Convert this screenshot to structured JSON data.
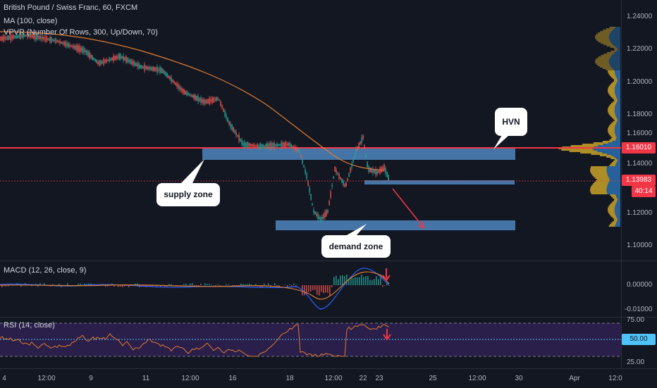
{
  "legend": {
    "symbol": "British Pound / Swiss Franc, 60, FXCM",
    "ma": "MA (100, close)",
    "vpvr": "VPVR (Number Of Rows, 300, Up/Down, 70)",
    "macd": "MACD (12, 26, close, 9)",
    "rsi": "RSI (14, close)"
  },
  "price_axis": {
    "ticks": [
      "1.24000",
      "1.22000",
      "1.20000",
      "1.18000",
      "1.16000",
      "1.14000",
      "1.12000",
      "1.10000"
    ],
    "hvn_price": "1.16010",
    "last_price": "1.13983",
    "countdown": "40:14"
  },
  "macd_axis": {
    "ticks": [
      "0.00000",
      "-0.01000"
    ]
  },
  "rsi_axis": {
    "ticks": [
      "75.00",
      "50.00",
      "25.00"
    ]
  },
  "time_axis": {
    "ticks": [
      "4",
      "12:00",
      "9",
      "11",
      "12:00",
      "16",
      "18",
      "12:00",
      "22",
      "23",
      "25",
      "12:00",
      "30",
      "Apr",
      "12:0"
    ]
  },
  "annotations": {
    "hvn": "HVN",
    "supply": "supply zone",
    "demand": "demand zone"
  },
  "colors": {
    "background": "#131722",
    "zone": "#4a7fb5",
    "hvn_line": "#f23645",
    "ma": "#e07b2f",
    "rsi_band": "#2a1e4a",
    "rsi_line": "#e07b2f"
  }
}
